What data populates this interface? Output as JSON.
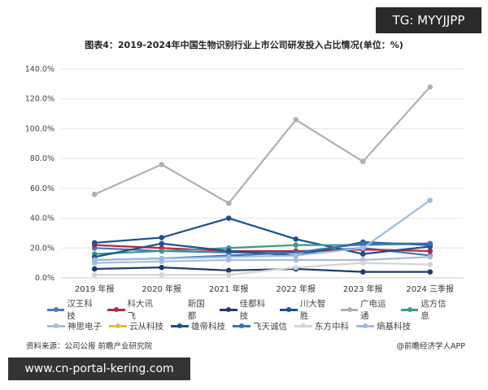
{
  "badge": "TG: MYYJJPP",
  "watermark_bottom": "www.cn-portal-kering.com",
  "source": "资料来源：公司公报 前瞻产业研究院",
  "brand": "@前瞻经济学人APP",
  "chart_data": {
    "type": "line",
    "title": "图表4：2019-2024年中国生物识别行业上市公司研发投入占比情况(单位：%)",
    "categories": [
      "2019 年报",
      "2020 年报",
      "2021 年报",
      "2022 年报",
      "2023 年报",
      "2024 三季报"
    ],
    "ylim": [
      0,
      140
    ],
    "yticks": [
      "0.0%",
      "20.0%",
      "40.0%",
      "60.0%",
      "80.0%",
      "100.0%",
      "120.0%",
      "140.0%"
    ],
    "grid": true,
    "legend_position": "bottom",
    "series": [
      {
        "name": "汉王科技",
        "color": "#4a78b8",
        "values": [
          20,
          18,
          17,
          17,
          20,
          15
        ]
      },
      {
        "name": "科大讯飞",
        "color": "#b8283a",
        "values": [
          22,
          20,
          18,
          18,
          19,
          18
        ]
      },
      {
        "name": "新国都",
        "color": "#ffffff",
        "values": [
          null,
          null,
          null,
          null,
          null,
          null
        ]
      },
      {
        "name": "佳都科技",
        "color": "#1f3b6e",
        "values": [
          6,
          7,
          5,
          6,
          4,
          4
        ]
      },
      {
        "name": "川大智胜",
        "color": "#1e4f8f",
        "values": [
          23.5,
          27,
          40,
          26,
          16,
          21
        ]
      },
      {
        "name": "广电运通",
        "color": "#b0b0b0",
        "values": [
          56,
          76,
          50,
          106,
          78,
          128
        ]
      },
      {
        "name": "远方信息",
        "color": "#3a9a8a",
        "values": [
          16,
          18,
          20,
          22,
          22,
          23
        ]
      },
      {
        "name": "神思电子",
        "color": "#a8bcd8",
        "values": [
          10,
          11,
          12,
          12,
          12,
          14
        ]
      },
      {
        "name": "云从科技",
        "color": "#e0c040",
        "values": [
          null,
          null,
          null,
          null,
          null,
          null
        ]
      },
      {
        "name": "雄帝科技",
        "color": "#20508c",
        "values": [
          14,
          23,
          18,
          15,
          24,
          22
        ]
      },
      {
        "name": "飞天诚信",
        "color": "#3a6fb5",
        "values": [
          12,
          13,
          15,
          17,
          23,
          23
        ]
      },
      {
        "name": "东方中科",
        "color": "#d4d4d4",
        "values": [
          2,
          2,
          2,
          7,
          10,
          9
        ]
      },
      {
        "name": "熵基科技",
        "color": "#9bbce0",
        "values": [
          12,
          13,
          14,
          15,
          20,
          52
        ]
      }
    ]
  }
}
